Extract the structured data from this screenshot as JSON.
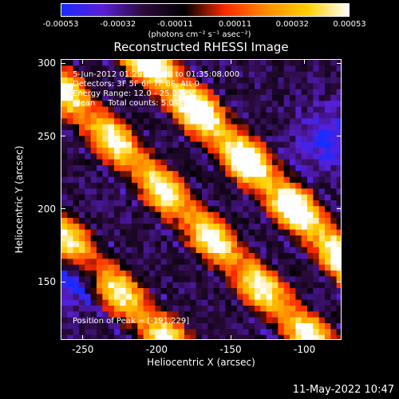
{
  "chart_data": {
    "type": "heatmap",
    "title": "Reconstructed RHESSI Image",
    "xlabel": "Heliocentric X (arcsec)",
    "ylabel": "Heliocentric Y (arcsec)",
    "xlim": [
      -265,
      -75
    ],
    "ylim": [
      110,
      303
    ],
    "x_ticks": [
      -250,
      -200,
      -150,
      -100
    ],
    "y_ticks": [
      150,
      200,
      250,
      300
    ],
    "colorbar": {
      "min": -0.00053,
      "max": 0.00053,
      "tick_values": [
        -0.00053,
        -0.00032,
        -0.00011,
        0.00011,
        0.00032,
        0.00053
      ],
      "tick_labels": [
        "-0.00053",
        "-0.00032",
        "-0.00011",
        "0.00011",
        "0.00032",
        "0.00053"
      ],
      "units": "(photons cm⁻² s⁻¹ asec⁻²)",
      "colors": [
        "#1a2bff",
        "#5a1fd6",
        "#2a0a3a",
        "#000000",
        "#ff2a00",
        "#ff8c00",
        "#ffd000",
        "#ffffff"
      ]
    },
    "annotations": [
      "5-Jun-2012 01:29:08.000 to 01:35:08.000",
      "Detectors: 3F 5F 6F 7F 8F, Att 0",
      "Energy Range: 12.0 - 25.0 keV",
      "Clean     Total counts: 5.04E+03"
    ],
    "peak_label": "Position of Peak = [-191,229]",
    "peak_position": [
      -191,
      229
    ],
    "bands": [
      {
        "offset": 0.3,
        "intensity": 1.0
      },
      {
        "offset": -0.1,
        "intensity": 0.8
      },
      {
        "offset": -0.62,
        "intensity": 0.75
      }
    ]
  },
  "footer": {
    "timestamp": "11-May-2022 10:47"
  }
}
